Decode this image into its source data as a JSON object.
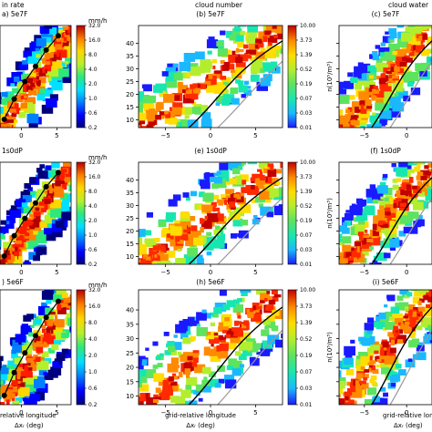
{
  "chart_data": {
    "type": "heatmap",
    "column_titles": [
      "in rate",
      "cloud number",
      "cloud water"
    ],
    "panels": [
      {
        "id": "a",
        "title": "a) 5e7F",
        "variable": "rain rate",
        "unit": "mm/h",
        "show_unit": true,
        "xticks": [
          0,
          5
        ],
        "yticks": [],
        "colorbar": [
          "32.0",
          "16.0",
          "8.0",
          "4.0",
          "2.0",
          "1.0",
          "0.6",
          "0.2"
        ],
        "band": {
          "x0": -3.5,
          "y0": 8,
          "x1": 5.5,
          "y1": 47
        },
        "markers": true,
        "xrange": [
          -3,
          7
        ]
      },
      {
        "id": "b",
        "title": "(b) 5e7F",
        "variable": "cloud number",
        "unit": "",
        "show_unit": false,
        "xticks": [
          -5,
          0,
          5
        ],
        "yticks": [
          10,
          15,
          20,
          25,
          30,
          35,
          40
        ],
        "colorbar": [
          "10.00",
          "3.73",
          "1.39",
          "0.52",
          "0.19",
          "0.07",
          "0.03",
          "0.01"
        ],
        "xrange": [
          -8,
          8
        ]
      },
      {
        "id": "c",
        "title": "(c) 5e7F",
        "variable": "cloud water",
        "unit": "n(10⁵/m³)",
        "show_unit": true,
        "xticks": [
          -5,
          0
        ],
        "yticks": [],
        "xrange": [
          -8,
          3
        ]
      },
      {
        "id": "d",
        "title": "1s0dP",
        "variable": "rain rate",
        "unit": "mm/h",
        "show_unit": true,
        "xticks": [
          0,
          5
        ],
        "yticks": [],
        "colorbar": [
          "32.0",
          "16.0",
          "8.0",
          "4.0",
          "2.0",
          "1.0",
          "0.6",
          "0.2"
        ],
        "markers": true,
        "xrange": [
          -3,
          7
        ]
      },
      {
        "id": "e",
        "title": "(e) 1s0dP",
        "variable": "cloud number",
        "unit": "",
        "show_unit": false,
        "xticks": [
          -5,
          0,
          5
        ],
        "yticks": [
          10,
          15,
          20,
          25,
          30,
          35,
          40
        ],
        "colorbar": [
          "10.00",
          "3.73",
          "1.39",
          "0.52",
          "0.19",
          "0.07",
          "0.03",
          "0.01"
        ],
        "xrange": [
          -8,
          8
        ]
      },
      {
        "id": "f",
        "title": "(f) 1s0dP",
        "variable": "cloud water",
        "unit": "n(10⁵/m³)",
        "show_unit": true,
        "xticks": [
          -5,
          0
        ],
        "yticks": [],
        "xrange": [
          -8,
          3
        ]
      },
      {
        "id": "g",
        "title": ") 5e6F",
        "variable": "rain rate",
        "unit": "mm/h",
        "show_unit": true,
        "xticks": [
          0,
          5
        ],
        "yticks": [],
        "colorbar": [
          "32.0",
          "16.0",
          "8.0",
          "4.0",
          "2.0",
          "1.0",
          "0.6",
          "0.2"
        ],
        "markers": true,
        "xrange": [
          -3,
          7
        ]
      },
      {
        "id": "h",
        "title": "(h) 5e6F",
        "variable": "cloud number",
        "unit": "",
        "show_unit": false,
        "xticks": [
          -5,
          0,
          5
        ],
        "yticks": [
          10,
          15,
          20,
          25,
          30,
          35,
          40
        ],
        "colorbar": [
          "10.00",
          "3.73",
          "1.39",
          "0.52",
          "0.19",
          "0.07",
          "0.03",
          "0.01"
        ],
        "xrange": [
          -8,
          8
        ]
      },
      {
        "id": "i",
        "title": "(i) 5e6F",
        "variable": "cloud water",
        "unit": "n(10⁵/m³)",
        "show_unit": true,
        "xticks": [
          -5,
          0
        ],
        "yticks": [],
        "xrange": [
          -8,
          3
        ]
      }
    ],
    "xlabels": {
      "col1": [
        "relative longitude",
        "Δxᵣ (deg)"
      ],
      "col2": [
        "grid-relative longitude",
        "Δxᵣ (deg)"
      ],
      "col3": [
        "grid-relative longitude",
        "Δxᵣ (deg)"
      ]
    },
    "yrange": [
      7,
      47
    ]
  },
  "colors": {
    "rain_cmap": [
      "#00007f",
      "#0000ff",
      "#0080ff",
      "#00e0ff",
      "#2ee87a",
      "#b6f02a",
      "#ffd700",
      "#ff7f00",
      "#ff1a00",
      "#b40000"
    ],
    "cloud_cmap": [
      "#1a1aff",
      "#1ab8ff",
      "#18e6b0",
      "#5ee35e",
      "#b3ee2e",
      "#ffdd00",
      "#ff8a00",
      "#ff2a00",
      "#c20000"
    ],
    "contour_gray": "#9a9a9a",
    "contour_black": "#000000"
  }
}
